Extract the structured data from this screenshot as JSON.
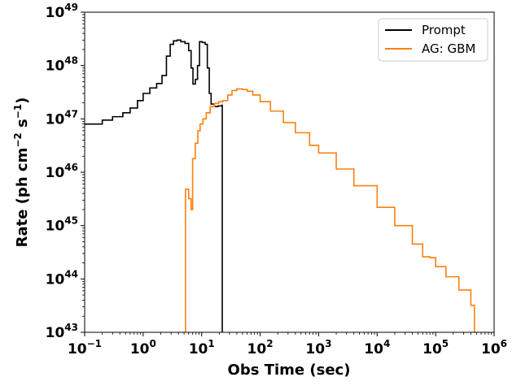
{
  "chart_data": {
    "type": "line",
    "step": true,
    "xscale": "log",
    "yscale": "log",
    "xlim": [
      0.1,
      1000000
    ],
    "ylim": [
      1e+43,
      1e+49
    ],
    "grid": false,
    "xlabel": "Obs Time (sec)",
    "ylabel": {
      "main": "Rate (ph cm",
      "exp1": "−2",
      "mid": " s",
      "exp2": "−1",
      "end": ")"
    },
    "xticks": [
      {
        "value": 0.1,
        "base": "10",
        "exp": "−1"
      },
      {
        "value": 1,
        "base": "10",
        "exp": "0"
      },
      {
        "value": 10,
        "base": "10",
        "exp": "1"
      },
      {
        "value": 100,
        "base": "10",
        "exp": "2"
      },
      {
        "value": 1000,
        "base": "10",
        "exp": "3"
      },
      {
        "value": 10000,
        "base": "10",
        "exp": "4"
      },
      {
        "value": 100000,
        "base": "10",
        "exp": "5"
      },
      {
        "value": 1000000,
        "base": "10",
        "exp": "6"
      }
    ],
    "yticks": [
      {
        "value": 1e+43,
        "base": "10",
        "exp": "43"
      },
      {
        "value": 1e+44,
        "base": "10",
        "exp": "44"
      },
      {
        "value": 1e+45,
        "base": "10",
        "exp": "45"
      },
      {
        "value": 1e+46,
        "base": "10",
        "exp": "46"
      },
      {
        "value": 1e+47,
        "base": "10",
        "exp": "47"
      },
      {
        "value": 1e+48,
        "base": "10",
        "exp": "48"
      },
      {
        "value": 1e+49,
        "base": "10",
        "exp": "49"
      }
    ],
    "legend": {
      "position": "upper-right",
      "entries": [
        "Prompt",
        "AG: GBM"
      ]
    },
    "series": [
      {
        "name": "Prompt",
        "color": "#000000",
        "points": [
          [
            0.1,
            8e+46
          ],
          [
            0.2,
            9.5e+46
          ],
          [
            0.3,
            1.1e+47
          ],
          [
            0.45,
            1.3e+47
          ],
          [
            0.6,
            1.6e+47
          ],
          [
            0.8,
            2.2e+47
          ],
          [
            1.0,
            3e+47
          ],
          [
            1.3,
            3.8e+47
          ],
          [
            1.7,
            4.6e+47
          ],
          [
            2.1,
            6.5e+47
          ],
          [
            2.5,
            1.5e+48
          ],
          [
            2.9,
            2.5e+48
          ],
          [
            3.3,
            2.9e+48
          ],
          [
            3.8,
            3e+48
          ],
          [
            4.4,
            2.8e+48
          ],
          [
            5.2,
            2.6e+48
          ],
          [
            6.0,
            1.9e+48
          ],
          [
            6.6,
            9e+47
          ],
          [
            7.1,
            4.5e+47
          ],
          [
            7.8,
            5.5e+47
          ],
          [
            8.5,
            1e+48
          ],
          [
            9.2,
            2.8e+48
          ],
          [
            10.2,
            2.7e+48
          ],
          [
            11.5,
            2.5e+48
          ],
          [
            12.5,
            9e+47
          ],
          [
            13.5,
            3e+47
          ],
          [
            14.5,
            1.9e+47
          ],
          [
            16.5,
            1.7e+47
          ],
          [
            19.0,
            1.75e+47
          ],
          [
            22.0,
            1.8e+47
          ],
          [
            22.5,
            1e+43
          ]
        ]
      },
      {
        "name": "AG: GBM",
        "color": "#ff7f0e",
        "points": [
          [
            5.3,
            1e+43
          ],
          [
            5.3,
            4.8e+45
          ],
          [
            6.0,
            3.2e+45
          ],
          [
            6.6,
            2e+45
          ],
          [
            7.0,
            1.8e+46
          ],
          [
            7.8,
            3.5e+46
          ],
          [
            8.6,
            6e+46
          ],
          [
            9.4,
            8e+46
          ],
          [
            10.5,
            1e+47
          ],
          [
            12.0,
            1.3e+47
          ],
          [
            14.0,
            1.7e+47
          ],
          [
            16.5,
            1.95e+47
          ],
          [
            19.5,
            2.1e+47
          ],
          [
            23.0,
            2.2e+47
          ],
          [
            28.0,
            2.8e+47
          ],
          [
            33.0,
            3.4e+47
          ],
          [
            40.0,
            3.65e+47
          ],
          [
            50.0,
            3.55e+47
          ],
          [
            60.0,
            3.3e+47
          ],
          [
            75.0,
            2.8e+47
          ],
          [
            100,
            2.1e+47
          ],
          [
            150,
            1.4e+47
          ],
          [
            250,
            8.5e+46
          ],
          [
            400,
            5.5e+46
          ],
          [
            700,
            3.2e+46
          ],
          [
            1000,
            2.3e+46
          ],
          [
            2000,
            1.15e+46
          ],
          [
            4000,
            5.6e+45
          ],
          [
            10000,
            2.2e+45
          ],
          [
            20000,
            1e+45
          ],
          [
            40000,
            4.5e+44
          ],
          [
            60000,
            2.6e+44
          ],
          [
            80000,
            2.5e+44
          ],
          [
            100000,
            1.7e+44
          ],
          [
            150000,
            1.1e+44
          ],
          [
            250000,
            6.2e+43
          ],
          [
            400000,
            3.2e+43
          ],
          [
            460000,
            2.6e+43
          ],
          [
            460000,
            1e+43
          ]
        ]
      }
    ]
  }
}
